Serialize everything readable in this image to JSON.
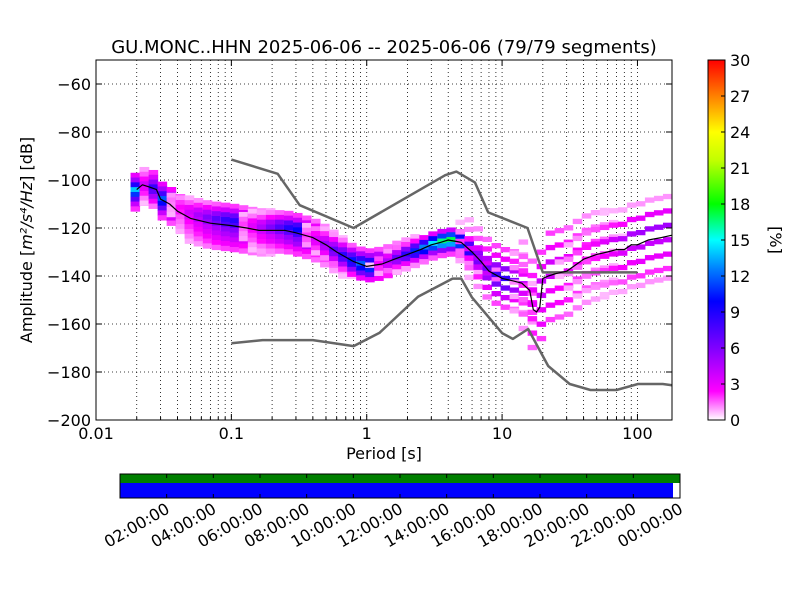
{
  "chart_data": [
    {
      "type": "heatmap",
      "title": "GU.MONC..HHN   2025-06-06 -- 2025-06-06  (79/79 segments)",
      "xlabel": "Period [s]",
      "ylabel_prefix": "Amplitude [",
      "ylabel_units": "m²/s⁴/Hz",
      "ylabel_suffix": "] [dB]",
      "x_scale": "log",
      "xlim": [
        0.01,
        180
      ],
      "ylim": [
        -200,
        -50
      ],
      "x_ticks": [
        {
          "value": 0.01,
          "label": "0.01"
        },
        {
          "value": 0.1,
          "label": "0.1"
        },
        {
          "value": 1,
          "label": "1"
        },
        {
          "value": 10,
          "label": "10"
        },
        {
          "value": 100,
          "label": "100"
        }
      ],
      "y_ticks": [
        {
          "value": -60,
          "label": "−60"
        },
        {
          "value": -80,
          "label": "−80"
        },
        {
          "value": -100,
          "label": "−100"
        },
        {
          "value": -120,
          "label": "−120"
        },
        {
          "value": -140,
          "label": "−140"
        },
        {
          "value": -160,
          "label": "−160"
        },
        {
          "value": -180,
          "label": "−180"
        },
        {
          "value": -200,
          "label": "−200"
        }
      ],
      "grid": true,
      "colorbar": {
        "label": "[%]",
        "range": [
          0,
          30
        ],
        "ticks": [
          "0",
          "3",
          "6",
          "9",
          "12",
          "15",
          "18",
          "21",
          "24",
          "27",
          "30"
        ],
        "colormap": [
          "#ffffff",
          "#ff00ff",
          "#8000ff",
          "#0000ff",
          "#00ffff",
          "#00ff00",
          "#ffff00",
          "#ff8000",
          "#ff0000"
        ]
      },
      "noise_models": {
        "color": "#666666",
        "high": {
          "period": [
            0.1,
            0.22,
            0.32,
            0.8,
            3.8,
            4.6,
            6.3,
            7.9,
            15.4,
            20,
            100
          ],
          "db": [
            -91.5,
            -97.4,
            -110.5,
            -120,
            -98,
            -96.5,
            -101,
            -113.5,
            -120,
            -138.5,
            -138.5
          ]
        },
        "low": {
          "period": [
            0.1,
            0.17,
            0.4,
            0.8,
            1.24,
            2.4,
            4.3,
            5,
            6,
            10,
            12,
            15.6,
            21.9,
            31.6,
            45,
            70,
            101,
            154,
            180
          ],
          "db": [
            -168,
            -166.7,
            -166.7,
            -169.2,
            -163.7,
            -148.6,
            -141.1,
            -141.1,
            -149,
            -163.8,
            -166.2,
            -162.1,
            -177.5,
            -185,
            -187.5,
            -187.5,
            -185,
            -185,
            -185.5
          ]
        }
      },
      "median_curve": {
        "color": "#000000",
        "period": [
          0.02,
          0.022,
          0.025,
          0.028,
          0.03,
          0.035,
          0.04,
          0.05,
          0.07,
          0.1,
          0.13,
          0.16,
          0.2,
          0.25,
          0.3,
          0.4,
          0.5,
          0.6,
          0.8,
          1.0,
          1.3,
          1.6,
          2.0,
          2.5,
          3.0,
          3.5,
          4.0,
          5.0,
          6.0,
          7.0,
          8.0,
          10,
          12,
          14,
          16,
          17,
          18,
          19,
          20,
          22,
          25,
          30,
          40,
          50,
          60,
          70,
          80,
          90,
          100,
          120,
          150,
          180
        ],
        "db": [
          -104,
          -102,
          -103,
          -104,
          -108,
          -110,
          -113,
          -116,
          -118,
          -119,
          -120,
          -121,
          -121,
          -121,
          -122,
          -124,
          -127,
          -130,
          -134,
          -136,
          -135,
          -133,
          -131,
          -129,
          -127,
          -126,
          -125,
          -126,
          -130,
          -134,
          -138,
          -141,
          -142,
          -143,
          -146,
          -154,
          -155,
          -153,
          -141,
          -140,
          -139,
          -138,
          -133,
          -131,
          -130,
          -129,
          -129,
          -127,
          -127,
          -125,
          -124,
          -123
        ]
      },
      "density_columns": [
        {
          "period": 0.02,
          "values": [
            {
              "db": -97,
              "percent": 3
            },
            {
              "db": -99,
              "percent": 5
            },
            {
              "db": -101,
              "percent": 9
            },
            {
              "db": -103,
              "percent": 14
            },
            {
              "db": -105,
              "percent": 11
            },
            {
              "db": -107,
              "percent": 7
            },
            {
              "db": -109,
              "percent": 4
            },
            {
              "db": -111,
              "percent": 2
            }
          ]
        },
        {
          "period": 0.03,
          "values": [
            {
              "db": -104,
              "percent": 3
            },
            {
              "db": -106,
              "percent": 5
            },
            {
              "db": -108,
              "percent": 8
            },
            {
              "db": -110,
              "percent": 12
            },
            {
              "db": -112,
              "percent": 10
            },
            {
              "db": -114,
              "percent": 7
            },
            {
              "db": -116,
              "percent": 4
            },
            {
              "db": -118,
              "percent": 2
            }
          ]
        },
        {
          "period": 0.1,
          "values": [
            {
              "db": -114,
              "percent": 2
            },
            {
              "db": -116,
              "percent": 4
            },
            {
              "db": -118,
              "percent": 7
            },
            {
              "db": -120,
              "percent": 9
            },
            {
              "db": -122,
              "percent": 8
            },
            {
              "db": -124,
              "percent": 6
            },
            {
              "db": -126,
              "percent": 5
            },
            {
              "db": -128,
              "percent": 4
            },
            {
              "db": -130,
              "percent": 3
            },
            {
              "db": -132,
              "percent": 2
            }
          ]
        },
        {
          "period": 0.3,
          "values": [
            {
              "db": -117,
              "percent": 2
            },
            {
              "db": -119,
              "percent": 4
            },
            {
              "db": -121,
              "percent": 8
            },
            {
              "db": -123,
              "percent": 10
            },
            {
              "db": -125,
              "percent": 8
            },
            {
              "db": -127,
              "percent": 6
            },
            {
              "db": -129,
              "percent": 5
            },
            {
              "db": -131,
              "percent": 3
            },
            {
              "db": -133,
              "percent": 2
            }
          ]
        },
        {
          "period": 1,
          "values": [
            {
              "db": -128,
              "percent": 2
            },
            {
              "db": -130,
              "percent": 5
            },
            {
              "db": -132,
              "percent": 9
            },
            {
              "db": -134,
              "percent": 13
            },
            {
              "db": -136,
              "percent": 11
            },
            {
              "db": -138,
              "percent": 7
            },
            {
              "db": -140,
              "percent": 3
            }
          ]
        },
        {
          "period": 4,
          "values": [
            {
              "db": -122,
              "percent": 4
            },
            {
              "db": -124,
              "percent": 12
            },
            {
              "db": -126,
              "percent": 18
            },
            {
              "db": -128,
              "percent": 14
            },
            {
              "db": -130,
              "percent": 6
            },
            {
              "db": -132,
              "percent": 2
            }
          ]
        },
        {
          "period": 10,
          "values": [
            {
              "db": -128,
              "percent": 2
            },
            {
              "db": -132,
              "percent": 3
            },
            {
              "db": -136,
              "percent": 6
            },
            {
              "db": -140,
              "percent": 9
            },
            {
              "db": -144,
              "percent": 7
            },
            {
              "db": -148,
              "percent": 4
            },
            {
              "db": -152,
              "percent": 2
            }
          ]
        },
        {
          "period": 20,
          "values": [
            {
              "db": -124,
              "percent": 2
            },
            {
              "db": -130,
              "percent": 3
            },
            {
              "db": -136,
              "percent": 4
            },
            {
              "db": -142,
              "percent": 4
            },
            {
              "db": -148,
              "percent": 3
            },
            {
              "db": -154,
              "percent": 3
            },
            {
              "db": -160,
              "percent": 2
            }
          ]
        },
        {
          "period": 100,
          "values": [
            {
              "db": -112,
              "percent": 1
            },
            {
              "db": -118,
              "percent": 3
            },
            {
              "db": -124,
              "percent": 5
            },
            {
              "db": -130,
              "percent": 4
            },
            {
              "db": -136,
              "percent": 3
            },
            {
              "db": -142,
              "percent": 2
            },
            {
              "db": -146,
              "percent": 1
            }
          ]
        }
      ]
    },
    {
      "type": "timeline",
      "description_of_bars": "data availability (green) and PSD segments used (blue)",
      "x_ticks": [
        "02:00:00",
        "04:00:00",
        "06:00:00",
        "08:00:00",
        "10:00:00",
        "12:00:00",
        "14:00:00",
        "16:00:00",
        "18:00:00",
        "20:00:00",
        "22:00:00",
        "00:00:00"
      ],
      "x_range_hours": [
        0,
        24
      ],
      "bars": [
        {
          "color": "#007f00",
          "start_hour": 0,
          "end_hour": 24
        },
        {
          "color": "#0000ff",
          "start_hour": 0,
          "end_hour": 23.7
        }
      ]
    }
  ]
}
